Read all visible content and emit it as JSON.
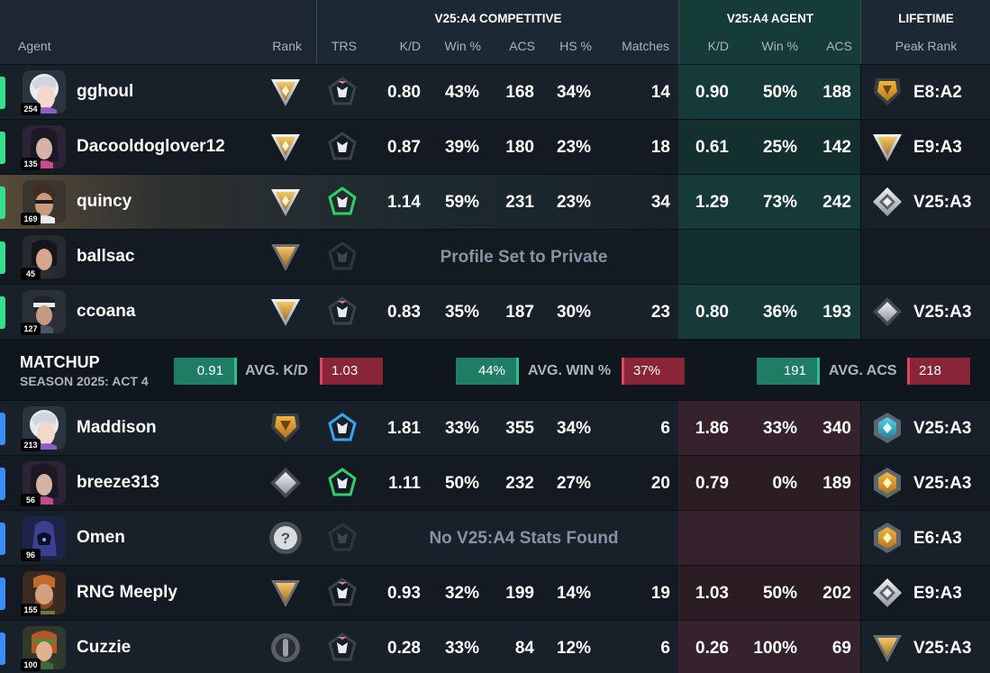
{
  "header": {
    "agent_label": "Agent",
    "rank_label": "Rank",
    "competitive_group": "V25:A4 COMPETITIVE",
    "agent_group": "V25:A4 AGENT",
    "lifetime_group": "LIFETIME",
    "cols": {
      "trs": "TRS",
      "kd": "K/D",
      "win": "Win %",
      "acs": "ACS",
      "hs": "HS %",
      "matches": "Matches",
      "a_kd": "K/D",
      "a_win": "Win %",
      "a_acs": "ACS",
      "peak": "Peak Rank"
    }
  },
  "team1": [
    {
      "name": "gghoul",
      "level": "254",
      "kd": "0.80",
      "win": "43%",
      "acs": "168",
      "hs": "34%",
      "matches": "14",
      "a_kd": "0.90",
      "a_win": "50%",
      "a_acs": "188",
      "peak": "E8:A2"
    },
    {
      "name": "Dacooldoglover12",
      "level": "135",
      "kd": "0.87",
      "win": "39%",
      "acs": "180",
      "hs": "23%",
      "matches": "18",
      "a_kd": "0.61",
      "a_win": "25%",
      "a_acs": "142",
      "peak": "E9:A3"
    },
    {
      "name": "quincy",
      "level": "169",
      "kd": "1.14",
      "win": "59%",
      "acs": "231",
      "hs": "23%",
      "matches": "34",
      "a_kd": "1.29",
      "a_win": "73%",
      "a_acs": "242",
      "peak": "V25:A3"
    },
    {
      "name": "ballsac",
      "level": "45",
      "message": "Profile Set to Private"
    },
    {
      "name": "ccoana",
      "level": "127",
      "kd": "0.83",
      "win": "35%",
      "acs": "187",
      "hs": "30%",
      "matches": "23",
      "a_kd": "0.80",
      "a_win": "36%",
      "a_acs": "193",
      "peak": "V25:A3"
    }
  ],
  "matchup": {
    "title": "MATCHUP",
    "season": "SEASON 2025: ACT 4",
    "kd_label": "AVG. K/D",
    "kd_us": "0.91",
    "kd_them": "1.03",
    "win_label": "AVG. WIN %",
    "win_us": "44%",
    "win_them": "37%",
    "acs_label": "AVG. ACS",
    "acs_us": "191",
    "acs_them": "218"
  },
  "team2": [
    {
      "name": "Maddison",
      "level": "213",
      "kd": "1.81",
      "win": "33%",
      "acs": "355",
      "hs": "34%",
      "matches": "6",
      "a_kd": "1.86",
      "a_win": "33%",
      "a_acs": "340",
      "peak": "V25:A3"
    },
    {
      "name": "breeze313",
      "level": "56",
      "kd": "1.11",
      "win": "50%",
      "acs": "232",
      "hs": "27%",
      "matches": "20",
      "a_kd": "0.79",
      "a_win": "0%",
      "a_acs": "189",
      "peak": "V25:A3"
    },
    {
      "name": "Omen",
      "level": "96",
      "message": "No V25:A4 Stats Found",
      "peak": "E6:A3"
    },
    {
      "name": "RNG Meeply",
      "level": "155",
      "kd": "0.93",
      "win": "32%",
      "acs": "199",
      "hs": "14%",
      "matches": "19",
      "a_kd": "1.03",
      "a_win": "50%",
      "a_acs": "202",
      "peak": "E9:A3"
    },
    {
      "name": "Cuzzie",
      "level": "100",
      "kd": "0.28",
      "win": "33%",
      "acs": "84",
      "hs": "12%",
      "matches": "6",
      "a_kd": "0.26",
      "a_win": "100%",
      "a_acs": "69",
      "peak": "V25:A3"
    }
  ],
  "colors": {
    "team1_accent": "#35e08c",
    "team2_accent": "#3b8cff",
    "better": "#1f7d63",
    "worse": "#8a2537"
  }
}
